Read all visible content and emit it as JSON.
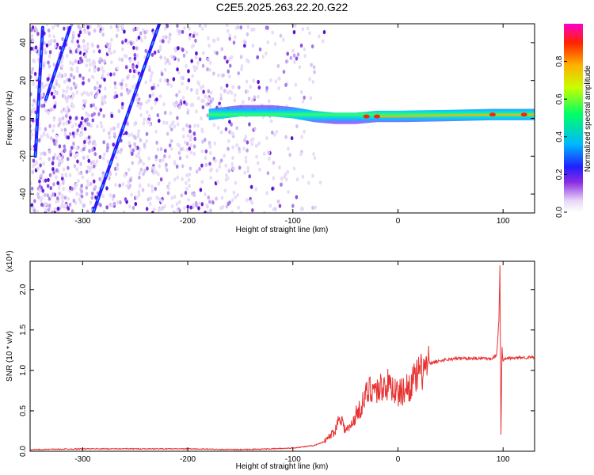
{
  "title": "C2E5.2025.263.22.20.G22",
  "chart_data": [
    {
      "type": "heatmap",
      "title": "",
      "xlabel": "Height of straight line (km)",
      "ylabel": "Frequency (Hz)",
      "xlim": [
        -350,
        130
      ],
      "ylim": [
        -50,
        50
      ],
      "xticks": [
        -300,
        -200,
        -100,
        0,
        100
      ],
      "yticks": [
        -40,
        -20,
        0,
        20,
        40
      ],
      "xtick_labels": [
        "-300",
        "-200",
        "-100",
        "0",
        "100"
      ],
      "ytick_labels": [
        "-40",
        "-20",
        "0",
        "20",
        "40"
      ],
      "colorbar": {
        "label": "Normalized spectral amplitude",
        "range": [
          0.0,
          1.0
        ],
        "ticks": [
          0.0,
          0.2,
          0.4,
          0.6,
          0.8
        ],
        "tick_labels": [
          "0.0",
          "0.2",
          "0.4",
          "0.6",
          "0.8"
        ],
        "colors": [
          "#ffffff",
          "#c8a8f0",
          "#7a00ff",
          "#0033ff",
          "#00ccff",
          "#00ff66",
          "#ccff00",
          "#ffcc00",
          "#ff3300",
          "#ff00cc"
        ]
      },
      "features": [
        {
          "name": "signal-ridge",
          "x": [
            -180,
            -150,
            -120,
            -100,
            -80,
            -60,
            -40,
            -20,
            0,
            50,
            90,
            130
          ],
          "y": [
            2,
            4,
            4,
            3,
            1,
            0,
            0,
            1,
            1,
            1.5,
            2,
            2
          ]
        },
        {
          "name": "diagonal-streak-1",
          "x": [
            -345,
            -338
          ],
          "y": [
            -20,
            48
          ]
        },
        {
          "name": "diagonal-streak-2",
          "x": [
            -290,
            -227
          ],
          "y": [
            -50,
            50
          ]
        },
        {
          "name": "diagonal-streak-3",
          "x": [
            -335,
            -312
          ],
          "y": [
            10,
            48
          ]
        }
      ],
      "noise_region_x": [
        -350,
        -100
      ]
    },
    {
      "type": "line",
      "title": "",
      "xlabel": "Height of straight line (km)",
      "ylabel": "SNR (10 * v/v)",
      "scale_label": "(x10⁴)",
      "xlim": [
        -350,
        130
      ],
      "ylim": [
        0,
        2.35
      ],
      "xticks": [
        -300,
        -200,
        -100,
        0,
        100
      ],
      "yticks": [
        0.0,
        0.5,
        1.0,
        1.5,
        2.0
      ],
      "xtick_labels": [
        "-300",
        "-200",
        "-100",
        "0",
        "100"
      ],
      "ytick_labels": [
        "0.0",
        "0.5",
        "1.0",
        "1.5",
        "2.0"
      ],
      "series": [
        {
          "name": "SNR",
          "color": "#e83232",
          "x": [
            -350,
            -300,
            -250,
            -200,
            -150,
            -120,
            -100,
            -80,
            -70,
            -60,
            -55,
            -50,
            -45,
            -40,
            -35,
            -30,
            -25,
            -20,
            -15,
            -10,
            -5,
            0,
            10,
            20,
            30,
            40,
            50,
            60,
            70,
            80,
            90,
            94,
            96,
            97,
            98,
            99,
            100,
            102,
            105,
            110,
            120,
            130
          ],
          "y": [
            0.02,
            0.03,
            0.03,
            0.03,
            0.02,
            0.03,
            0.04,
            0.07,
            0.12,
            0.25,
            0.45,
            0.25,
            0.3,
            0.45,
            0.55,
            0.7,
            0.8,
            0.75,
            0.8,
            0.82,
            0.8,
            0.7,
            0.8,
            0.95,
            1.08,
            1.12,
            1.14,
            1.15,
            1.15,
            1.15,
            1.15,
            1.2,
            1.6,
            2.3,
            0.2,
            1.3,
            1.1,
            1.15,
            1.15,
            1.15,
            1.16,
            1.16
          ]
        }
      ]
    }
  ]
}
